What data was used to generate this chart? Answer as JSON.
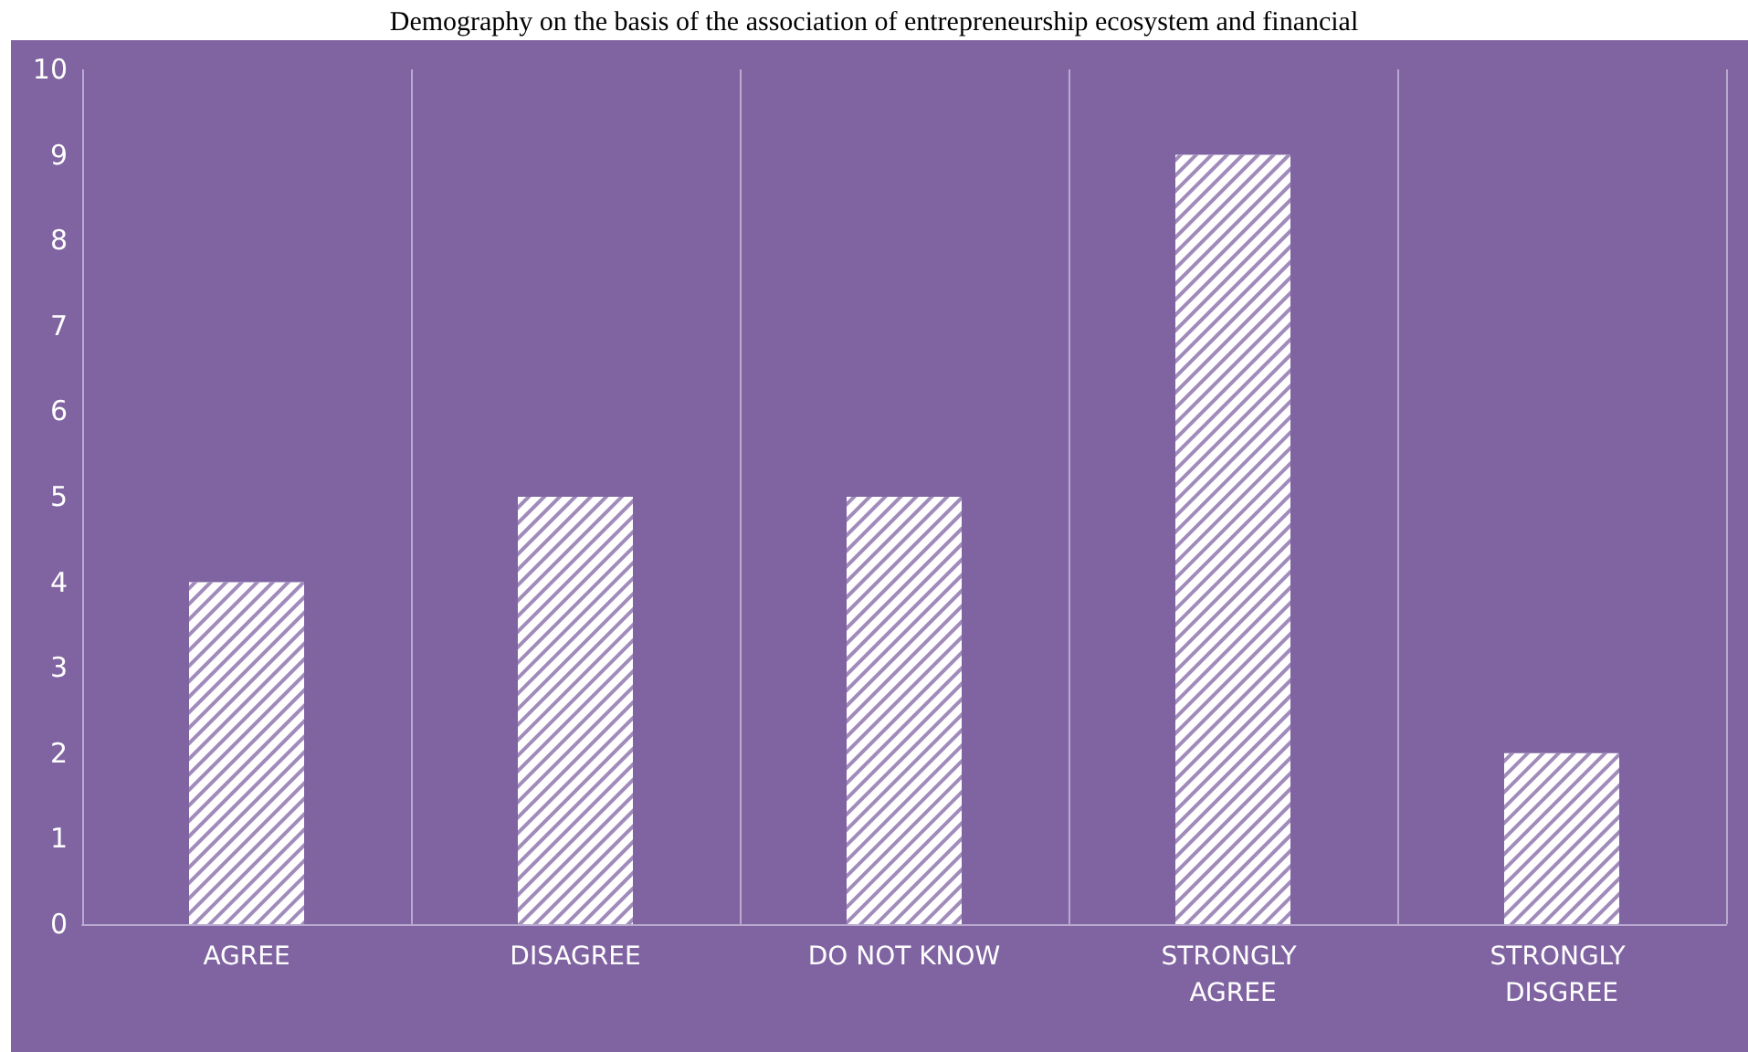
{
  "chart_data": {
    "type": "bar",
    "title": "Demography on the basis of the association of entrepreneurship ecosystem and financial",
    "categories": [
      "AGREE",
      "DISAGREE",
      "DO NOT KNOW",
      "STRONGLY AGREE",
      "STRONGLY DISGREE"
    ],
    "values": [
      4,
      5,
      5,
      9,
      2
    ],
    "color": "#ffffff",
    "ylim": [
      0,
      10
    ],
    "yticks": [
      0,
      1,
      2,
      3,
      4,
      5,
      6,
      7,
      8,
      9,
      10
    ],
    "grid": "x"
  }
}
